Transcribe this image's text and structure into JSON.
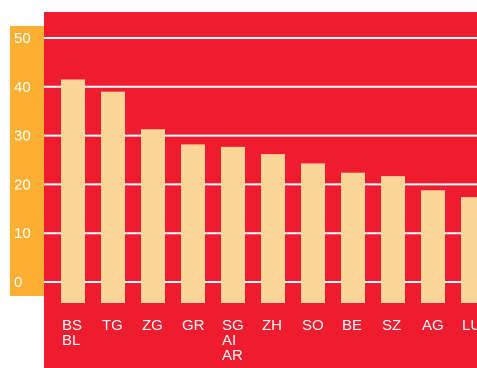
{
  "chart_data": {
    "type": "bar",
    "title": "",
    "xlabel": "",
    "ylabel": "",
    "ylim": [
      0,
      50
    ],
    "yticks": [
      0,
      10,
      20,
      30,
      40,
      50
    ],
    "grid": true,
    "categories": [
      [
        "BS",
        "BL"
      ],
      [
        "TG"
      ],
      [
        "ZG"
      ],
      [
        "GR"
      ],
      [
        "SG",
        "AI",
        "AR"
      ],
      [
        "ZH"
      ],
      [
        "SO"
      ],
      [
        "BE"
      ],
      [
        "SZ"
      ],
      [
        "AG"
      ],
      [
        "LU"
      ]
    ],
    "values": [
      41.5,
      39,
      31.3,
      28.2,
      27.7,
      26.2,
      24.3,
      22.4,
      21.7,
      18.8,
      17.4
    ],
    "colors": {
      "plot_background": "#ee1c2e",
      "bar": "#fdd599",
      "axis_panel": "#fbb034",
      "gridline": "#ffffff",
      "tick_label": "#ffffff"
    }
  }
}
